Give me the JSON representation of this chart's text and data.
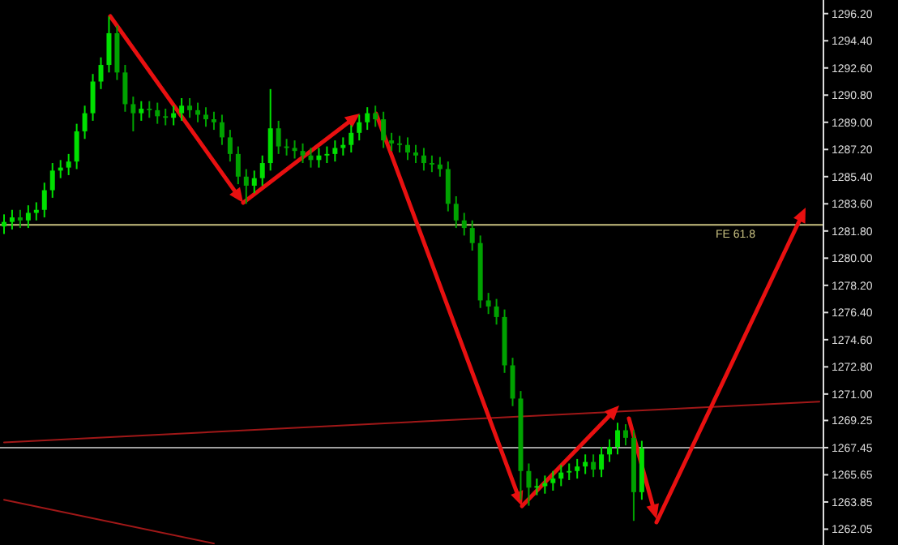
{
  "chart_data": {
    "type": "candlestick",
    "categories": [
      null,
      null,
      null,
      null,
      null,
      null,
      null,
      null,
      null,
      null,
      null,
      null,
      null,
      null,
      null,
      null,
      null,
      null,
      null,
      null,
      null,
      null,
      null,
      null,
      null,
      null,
      null,
      null,
      null,
      null,
      null,
      null,
      null,
      null,
      null,
      null,
      null,
      null,
      null,
      null,
      null,
      null,
      null,
      null,
      null,
      null,
      null,
      null,
      null,
      null,
      null,
      null,
      null,
      null,
      null,
      null,
      null,
      null,
      null,
      null,
      null,
      null,
      null,
      null,
      null,
      null,
      null,
      null,
      null,
      null,
      null,
      null,
      null,
      null,
      null,
      null,
      null,
      null,
      null,
      null,
      null,
      null,
      null,
      null,
      null,
      null,
      null,
      null,
      null,
      null,
      null,
      null,
      null,
      null,
      null,
      null,
      null,
      null,
      null,
      null,
      null,
      null
    ],
    "ohlc": [
      [
        1282.1,
        1282.9,
        1281.6,
        1282.4
      ],
      [
        1282.4,
        1283.2,
        1281.9,
        1282.7
      ],
      [
        1282.7,
        1283.2,
        1282.0,
        1282.5
      ],
      [
        1282.5,
        1283.5,
        1282.0,
        1283.0
      ],
      [
        1283.0,
        1283.7,
        1282.5,
        1283.2
      ],
      [
        1283.2,
        1285.0,
        1282.7,
        1284.5
      ],
      [
        1284.5,
        1286.3,
        1284.0,
        1285.8
      ],
      [
        1285.8,
        1286.5,
        1285.3,
        1286.0
      ],
      [
        1286.0,
        1286.9,
        1285.5,
        1286.4
      ],
      [
        1286.4,
        1288.9,
        1285.9,
        1288.4
      ],
      [
        1288.4,
        1290.1,
        1287.9,
        1289.6
      ],
      [
        1289.6,
        1292.2,
        1289.1,
        1291.7
      ],
      [
        1291.7,
        1293.3,
        1291.2,
        1292.8
      ],
      [
        1292.8,
        1296.0,
        1292.3,
        1294.9
      ],
      [
        1294.9,
        1295.4,
        1291.8,
        1292.3
      ],
      [
        1292.3,
        1292.8,
        1289.7,
        1290.2
      ],
      [
        1290.2,
        1290.7,
        1288.4,
        1289.6
      ],
      [
        1289.6,
        1290.4,
        1289.1,
        1289.9
      ],
      [
        1289.9,
        1290.4,
        1289.3,
        1289.8
      ],
      [
        1289.8,
        1290.3,
        1288.9,
        1289.4
      ],
      [
        1289.4,
        1289.9,
        1288.8,
        1289.3
      ],
      [
        1289.3,
        1290.1,
        1288.8,
        1289.6
      ],
      [
        1289.6,
        1290.6,
        1289.1,
        1290.1
      ],
      [
        1290.1,
        1290.6,
        1289.3,
        1289.8
      ],
      [
        1289.8,
        1290.3,
        1289.0,
        1289.5
      ],
      [
        1289.5,
        1290.0,
        1288.7,
        1289.2
      ],
      [
        1289.2,
        1289.7,
        1288.5,
        1289.0
      ],
      [
        1289.0,
        1289.5,
        1287.5,
        1288.0
      ],
      [
        1288.0,
        1288.5,
        1286.4,
        1286.9
      ],
      [
        1286.9,
        1287.4,
        1284.9,
        1285.4
      ],
      [
        1285.4,
        1285.9,
        1283.6,
        1284.8
      ],
      [
        1284.8,
        1285.8,
        1284.3,
        1285.3
      ],
      [
        1285.3,
        1286.8,
        1284.8,
        1286.3
      ],
      [
        1286.3,
        1291.2,
        1285.8,
        1288.6
      ],
      [
        1288.6,
        1289.1,
        1286.9,
        1287.4
      ],
      [
        1287.4,
        1287.9,
        1286.8,
        1287.3
      ],
      [
        1287.3,
        1287.8,
        1286.6,
        1287.1
      ],
      [
        1287.1,
        1287.6,
        1286.3,
        1286.8
      ],
      [
        1286.8,
        1287.3,
        1286.0,
        1286.5
      ],
      [
        1286.5,
        1287.3,
        1286.0,
        1286.8
      ],
      [
        1286.8,
        1287.4,
        1286.3,
        1286.9
      ],
      [
        1286.9,
        1287.8,
        1286.4,
        1287.3
      ],
      [
        1287.3,
        1288.0,
        1286.8,
        1287.5
      ],
      [
        1287.5,
        1288.8,
        1287.0,
        1288.3
      ],
      [
        1288.3,
        1289.5,
        1287.8,
        1289.0
      ],
      [
        1289.0,
        1290.0,
        1288.5,
        1289.6
      ],
      [
        1289.6,
        1290.1,
        1288.7,
        1289.2
      ],
      [
        1289.2,
        1289.7,
        1287.3,
        1287.8
      ],
      [
        1287.8,
        1288.3,
        1287.1,
        1287.6
      ],
      [
        1287.6,
        1288.1,
        1287.0,
        1287.5
      ],
      [
        1287.5,
        1288.0,
        1286.5,
        1287.0
      ],
      [
        1287.0,
        1287.5,
        1286.3,
        1286.8
      ],
      [
        1286.8,
        1287.3,
        1285.8,
        1286.3
      ],
      [
        1286.3,
        1286.8,
        1285.7,
        1286.2
      ],
      [
        1286.2,
        1286.7,
        1285.4,
        1285.9
      ],
      [
        1285.9,
        1286.4,
        1283.1,
        1283.6
      ],
      [
        1283.6,
        1284.1,
        1282.0,
        1282.5
      ],
      [
        1282.5,
        1283.0,
        1281.5,
        1282.0
      ],
      [
        1282.0,
        1282.5,
        1280.5,
        1281.0
      ],
      [
        1281.0,
        1281.5,
        1276.7,
        1277.2
      ],
      [
        1277.2,
        1277.7,
        1276.3,
        1276.8
      ],
      [
        1276.8,
        1277.3,
        1275.6,
        1276.1
      ],
      [
        1276.1,
        1276.6,
        1272.4,
        1272.9
      ],
      [
        1272.9,
        1273.4,
        1270.2,
        1270.7
      ],
      [
        1270.7,
        1271.2,
        1264.0,
        1265.9
      ],
      [
        1265.9,
        1266.4,
        1263.6,
        1264.8
      ],
      [
        1264.8,
        1265.4,
        1264.3,
        1264.9
      ],
      [
        1264.9,
        1265.6,
        1264.4,
        1265.1
      ],
      [
        1265.1,
        1265.9,
        1264.6,
        1265.4
      ],
      [
        1265.4,
        1266.3,
        1264.9,
        1265.8
      ],
      [
        1265.8,
        1266.4,
        1265.3,
        1265.9
      ],
      [
        1265.9,
        1266.7,
        1265.4,
        1266.2
      ],
      [
        1266.2,
        1267.0,
        1265.7,
        1266.5
      ],
      [
        1266.5,
        1267.0,
        1265.5,
        1266.0
      ],
      [
        1266.0,
        1267.5,
        1265.5,
        1267.0
      ],
      [
        1267.0,
        1268.0,
        1266.5,
        1267.5
      ],
      [
        1267.5,
        1269.1,
        1267.0,
        1268.6
      ],
      [
        1268.6,
        1269.0,
        1267.6,
        1268.1
      ],
      [
        1268.1,
        1268.6,
        1262.6,
        1264.5
      ],
      [
        1264.5,
        1267.9,
        1264.0,
        1267.4
      ],
      null,
      null,
      null,
      null,
      null,
      null,
      null,
      null,
      null,
      null,
      null,
      null,
      null,
      null,
      null,
      null,
      null,
      null,
      null,
      null,
      null,
      null
    ],
    "colors": [
      "#00e000",
      "#00e000",
      "#00a200",
      "#00e000",
      "#00e000",
      "#00e000",
      "#00e000",
      "#00e000",
      "#00e000",
      "#00e000",
      "#00e000",
      "#00e000",
      "#00e000",
      "#00e000",
      "#00a200",
      "#00a200",
      "#00a200",
      "#00e000",
      "#00a200",
      "#00a200",
      "#00a200",
      "#00e000",
      "#00e000",
      "#00a200",
      "#00a200",
      "#00a200",
      "#00a200",
      "#00a200",
      "#00a200",
      "#00a200",
      "#00a200",
      "#00e000",
      "#00e000",
      "#00e000",
      "#00a200",
      "#00a200",
      "#00a200",
      "#00a200",
      "#00a200",
      "#00e000",
      "#00e000",
      "#00e000",
      "#00e000",
      "#00e000",
      "#00e000",
      "#00e000",
      "#00a200",
      "#00a200",
      "#00a200",
      "#00a200",
      "#00a200",
      "#00a200",
      "#00a200",
      "#00a200",
      "#00a200",
      "#00a200",
      "#00a200",
      "#00a200",
      "#00a200",
      "#00a200",
      "#00a200",
      "#00a200",
      "#00a200",
      "#00a200",
      "#00a200",
      "#00a200",
      "#00e000",
      "#00e000",
      "#00e000",
      "#00e000",
      "#00e000",
      "#00e000",
      "#00e000",
      "#00a200",
      "#00e000",
      "#00e000",
      "#00e000",
      "#00a200",
      "#00a200",
      "#00e000",
      null,
      null,
      null,
      null,
      null,
      null,
      null,
      null,
      null,
      null,
      null,
      null,
      null,
      null,
      null,
      null,
      null,
      null,
      null,
      null,
      null,
      null
    ],
    "series": [
      {
        "type": "line",
        "color": "#a01818",
        "values": [
          1267.8,
          null,
          null,
          null,
          null,
          null,
          null,
          null,
          null,
          null,
          null,
          null,
          null,
          null,
          null,
          null,
          null,
          null,
          null,
          null,
          null,
          null,
          null,
          null,
          null,
          null,
          null,
          null,
          null,
          null,
          null,
          null,
          null,
          null,
          null,
          null,
          null,
          null,
          null,
          null,
          null,
          null,
          null,
          null,
          null,
          null,
          null,
          null,
          null,
          null,
          null,
          null,
          null,
          null,
          null,
          null,
          null,
          null,
          null,
          null,
          null,
          null,
          null,
          null,
          null,
          null,
          null,
          null,
          null,
          null,
          null,
          null,
          null,
          null,
          null,
          null,
          null,
          null,
          null,
          null,
          null,
          null,
          null,
          null,
          null,
          null,
          null,
          null,
          null,
          null,
          null,
          null,
          null,
          null,
          null,
          null,
          null,
          null,
          null,
          null,
          null,
          1270.5
        ]
      },
      {
        "type": "line",
        "color": "#a01818",
        "values": [
          1264.0,
          null,
          null,
          null,
          null,
          null,
          null,
          null,
          null,
          null,
          null,
          null,
          null,
          null,
          null,
          null,
          null,
          null,
          null,
          null,
          null,
          null,
          null,
          null,
          null,
          null,
          1261.1,
          null,
          null,
          null,
          null,
          null,
          null,
          null,
          null,
          null,
          null,
          null,
          null,
          null,
          null,
          null,
          null,
          null,
          null,
          null,
          null,
          null,
          null,
          null,
          null,
          null,
          null,
          null,
          null,
          null,
          null,
          null,
          null,
          null,
          null,
          null,
          null,
          null,
          null,
          null,
          null,
          null,
          null,
          null,
          null,
          null,
          null,
          null,
          null,
          null,
          null,
          null,
          null,
          null,
          null,
          null,
          null,
          null,
          null,
          null,
          null,
          null,
          null,
          null,
          null,
          null,
          null,
          null,
          null,
          null,
          null,
          null,
          null,
          null,
          null,
          null
        ]
      }
    ],
    "ref_lines": [
      {
        "axis": "y",
        "value": 1282.2,
        "label": "FE 61.8",
        "color": "#c8c080"
      },
      {
        "axis": "y",
        "value": 1267.45,
        "label": null,
        "color": "#a0a0a0"
      }
    ],
    "ylim": [
      1261.0,
      1297.1
    ],
    "yticks": [
      {
        "value": 1296.2,
        "label": "1296.20"
      },
      {
        "value": 1294.4,
        "label": "1294.40"
      },
      {
        "value": 1292.6,
        "label": "1292.60"
      },
      {
        "value": 1290.8,
        "label": "1290.80"
      },
      {
        "value": 1289.0,
        "label": "1289.00"
      },
      {
        "value": 1287.2,
        "label": "1287.20"
      },
      {
        "value": 1285.4,
        "label": "1285.40"
      },
      {
        "value": 1283.6,
        "label": "1283.60"
      },
      {
        "value": 1281.8,
        "label": "1281.80"
      },
      {
        "value": 1280.0,
        "label": "1280.00"
      },
      {
        "value": 1278.2,
        "label": "1278.20"
      },
      {
        "value": 1276.4,
        "label": "1276.40"
      },
      {
        "value": 1274.6,
        "label": "1274.60"
      },
      {
        "value": 1272.8,
        "label": "1272.80"
      },
      {
        "value": 1271.0,
        "label": "1271.00"
      },
      {
        "value": 1269.25,
        "label": "1269.25"
      },
      {
        "value": 1267.45,
        "label": "1267.45"
      },
      {
        "value": 1265.65,
        "label": "1265.65"
      },
      {
        "value": 1263.85,
        "label": "1263.85"
      },
      {
        "value": 1262.05,
        "label": "1262.05"
      }
    ],
    "tick_labels": "y",
    "grid": false
  }
}
